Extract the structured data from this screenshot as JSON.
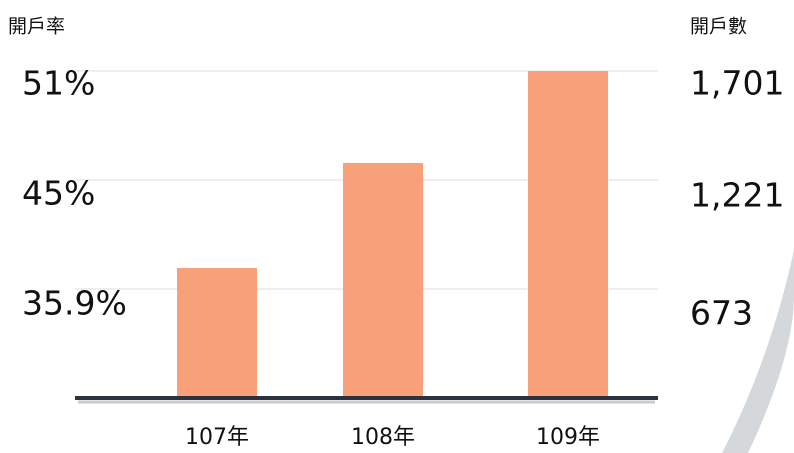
{
  "chart_data": {
    "type": "bar",
    "categories": [
      "107年",
      "108年",
      "109年"
    ],
    "series": [
      {
        "name": "開戶率",
        "values": [
          35.9,
          45,
          51
        ],
        "value_labels": [
          "35.9%",
          "45%",
          "51%"
        ]
      },
      {
        "name": "開戶數",
        "color": "#f8a07a",
        "values": [
          673,
          1221,
          1701
        ],
        "value_labels": [
          "673",
          "1,221",
          "1,701"
        ]
      }
    ],
    "ylim": [
      0,
      1701
    ]
  }
}
